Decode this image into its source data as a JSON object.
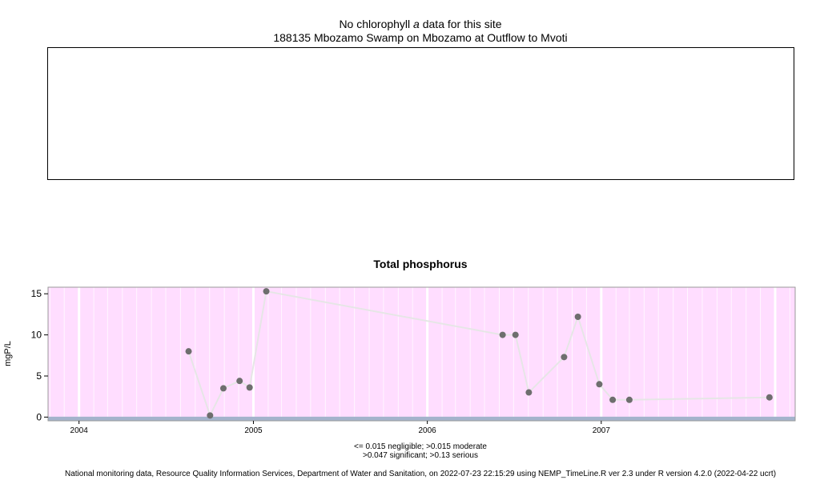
{
  "header": {
    "line1_pre": "No chlorophyll",
    "line1_italic": "a",
    "line1_post": "data for this site",
    "line2": "188135 Mbozamo Swamp on Mbozamo at Outflow to Mvoti"
  },
  "chart_data": {
    "type": "line",
    "title": "Total phosphorus",
    "ylabel": "mgP/L",
    "xlabel": "",
    "xlim": [
      "2003-10-28",
      "2008-02-12"
    ],
    "ylim": [
      -0.45,
      15.8
    ],
    "x_ticks": [
      "2004",
      "2005",
      "2006",
      "2007"
    ],
    "y_ticks": [
      0,
      5,
      10,
      15
    ],
    "background_color": "#FFDDFF",
    "baseline_color": "#A4B3CC",
    "line_color": "#E6E6E6",
    "point_color": "#6E6E6E",
    "grid": true,
    "series": [
      {
        "x": [
          "2004-08-18",
          "2004-10-02",
          "2004-10-30",
          "2004-12-03",
          "2004-12-24",
          "2005-01-28",
          "2006-06-08",
          "2006-07-05",
          "2006-08-02",
          "2006-10-15",
          "2006-11-13",
          "2006-12-28",
          "2007-01-25",
          "2007-03-01",
          "2007-12-20"
        ],
        "y": [
          8.0,
          0.2,
          3.5,
          4.4,
          3.6,
          15.3,
          10.0,
          10.0,
          3.0,
          7.3,
          12.2,
          4.0,
          2.1,
          2.1,
          2.4
        ]
      }
    ]
  },
  "footnote": {
    "line1": "<= 0.015 negligible; >0.015 moderate",
    "line2": ">0.047 significant; >0.13 serious"
  },
  "credit": "National monitoring data, Resource Quality Information Services, Department of Water and Sanitation, on 2022-07-23 22:15:29 using NEMP_TimeLine.R ver 2.3 under R version 4.2.0 (2022-04-22 ucrt)"
}
